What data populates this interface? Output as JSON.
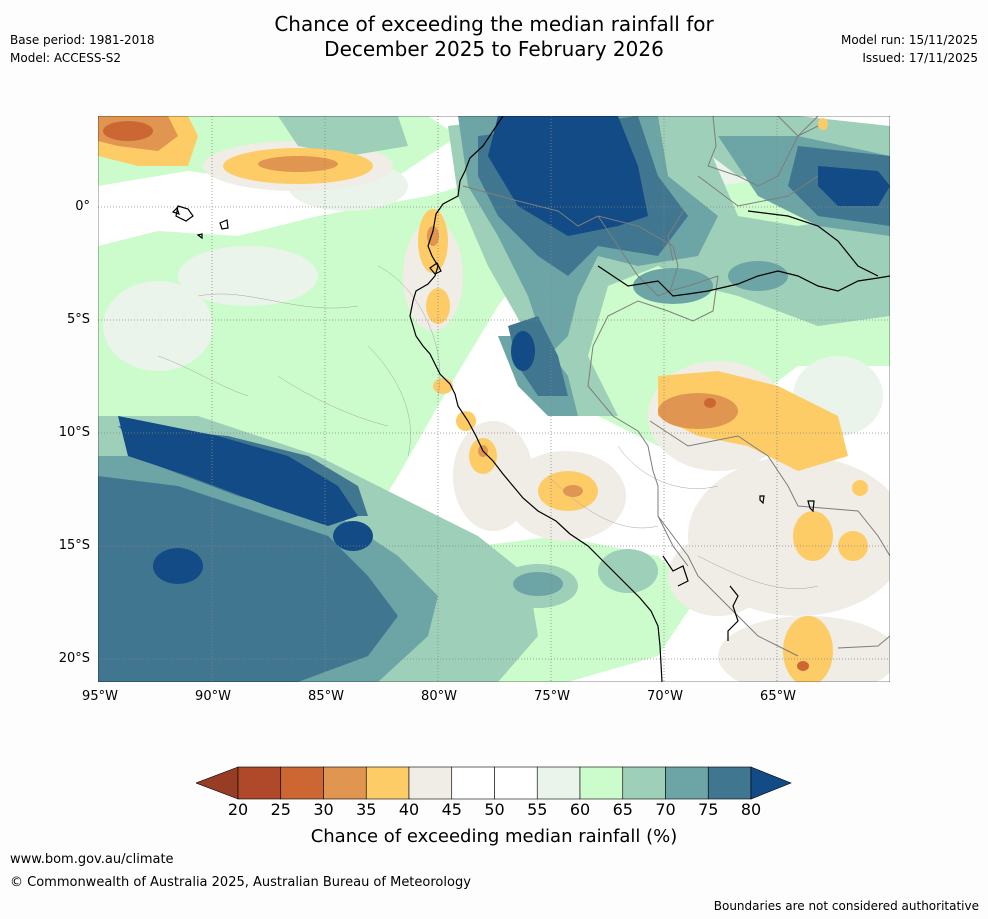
{
  "header": {
    "title_line1": "Chance of exceeding the median rainfall for",
    "title_line2": "December 2025 to February 2026",
    "base_period": "Base period: 1981-2018",
    "model": "Model: ACCESS-S2",
    "model_run": "Model run: 15/11/2025",
    "issued": "Issued: 17/11/2025"
  },
  "map": {
    "lat_labels": [
      "0°",
      "5°S",
      "10°S",
      "15°S",
      "20°S"
    ],
    "lon_labels": [
      "95°W",
      "90°W",
      "85°W",
      "80°W",
      "75°W",
      "70°W",
      "65°W"
    ]
  },
  "colorbar": {
    "ticks": [
      "20",
      "25",
      "30",
      "35",
      "40",
      "45",
      "50",
      "55",
      "60",
      "65",
      "70",
      "75",
      "80"
    ],
    "colors": [
      "#b0482a",
      "#cc6633",
      "#e09550",
      "#fdcc66",
      "#f0ece6",
      "#ffffff",
      "#ffffff",
      "#eaf4ea",
      "#ccfccc",
      "#9ecfb9",
      "#6da5a6",
      "#40768f"
    ],
    "low_extend_color": "#973d25",
    "high_extend_color": "#124b85",
    "title": "Chance of exceeding median rainfall (%)"
  },
  "footer": {
    "website": "www.bom.gov.au/climate",
    "copyright": "© Commonwealth of Australia 2025, Australian Bureau of Meteorology",
    "disclaimer": "Boundaries are not considered authoritative"
  }
}
